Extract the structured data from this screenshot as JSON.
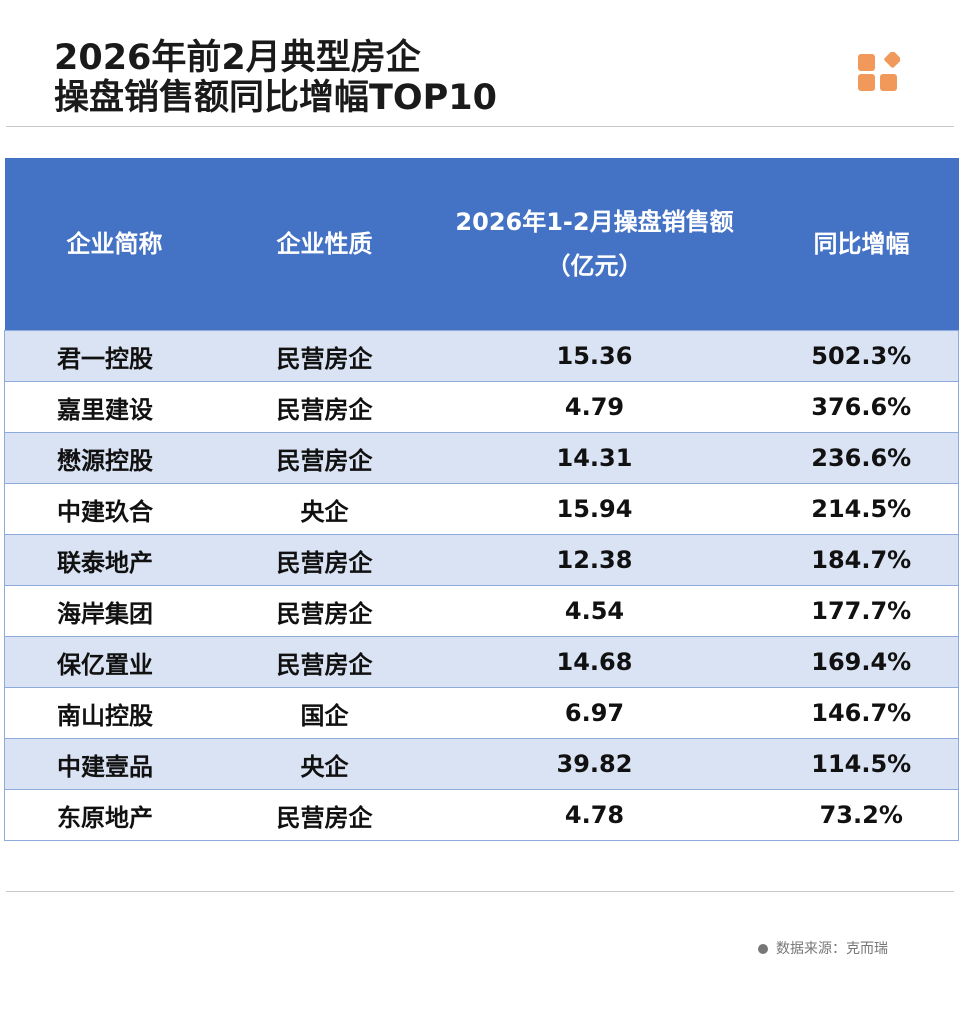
{
  "title": {
    "line1": "2026年前2月典型房企",
    "line2": "操盘销售额同比增幅TOP10"
  },
  "brand_color": "#F0995A",
  "header_color": "#4472C4",
  "chart_data": {
    "type": "table",
    "columns": [
      "企业简称",
      "企业性质",
      "2026年1-2月操盘销售额",
      "同比增幅"
    ],
    "column_units": [
      "",
      "",
      "（亿元）",
      ""
    ],
    "rows": [
      [
        "君一控股",
        "民营房企",
        "15.36",
        "502.3%"
      ],
      [
        "嘉里建设",
        "民营房企",
        "4.79",
        "376.6%"
      ],
      [
        "懋源控股",
        "民营房企",
        "14.31",
        "236.6%"
      ],
      [
        "中建玖合",
        "央企",
        "15.94",
        "214.5%"
      ],
      [
        "联泰地产",
        "民营房企",
        "12.38",
        "184.7%"
      ],
      [
        "海岸集团",
        "民营房企",
        "4.54",
        "177.7%"
      ],
      [
        "保亿置业",
        "民营房企",
        "14.68",
        "169.4%"
      ],
      [
        "南山控股",
        "国企",
        "6.97",
        "146.7%"
      ],
      [
        "中建壹品",
        "央企",
        "39.82",
        "114.5%"
      ],
      [
        "东原地产",
        "民营房企",
        "4.78",
        "73.2%"
      ]
    ]
  },
  "footer": {
    "source": "数据来源：克而瑞"
  }
}
